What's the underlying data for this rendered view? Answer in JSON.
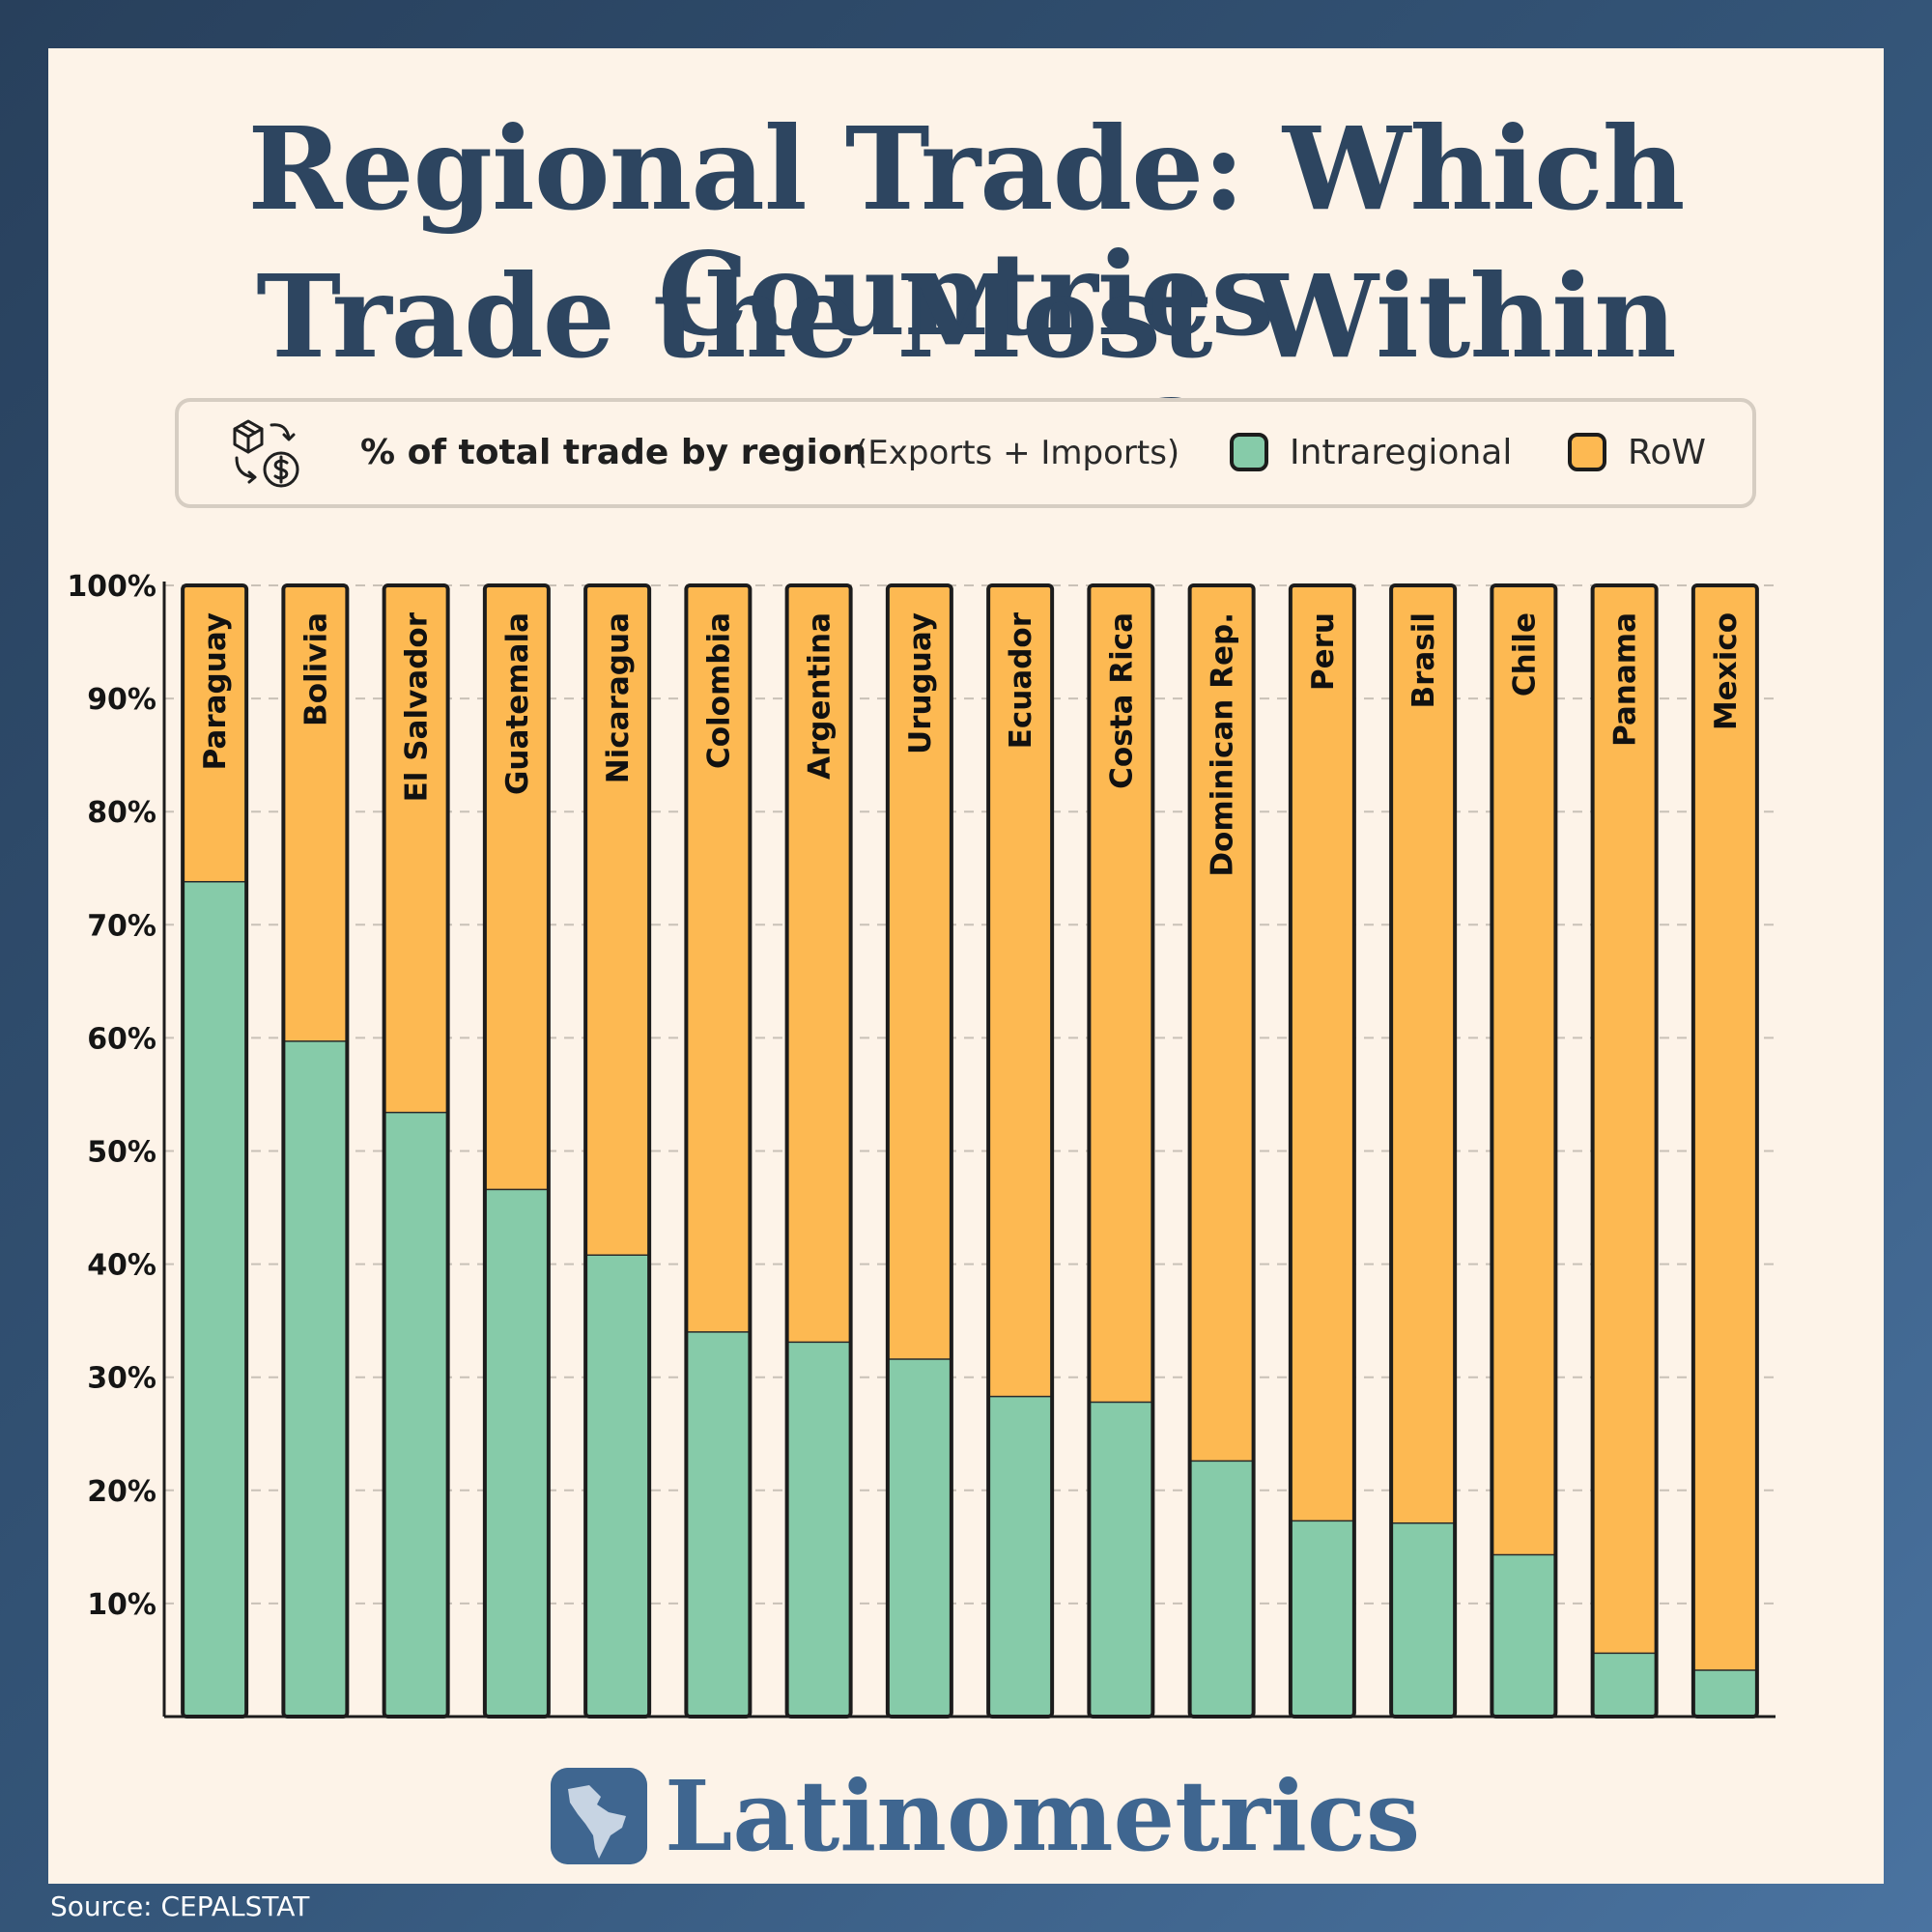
{
  "header": {
    "title_line1": "Regional Trade: Which Countries",
    "title_line2": "Trade the Most Within LatAm?"
  },
  "legend": {
    "measure": "% of total trade by region",
    "note": "(Exports + Imports)",
    "icon": "trade-exchange-icon",
    "items": [
      {
        "label": "Intraregional",
        "color": "#86cba9"
      },
      {
        "label": "RoW",
        "color": "#fdb952"
      }
    ]
  },
  "footer": {
    "brand": "Latinometrics",
    "logo_icon": "latam-map-logo-icon",
    "source": "Source: CEPALSTAT"
  },
  "chart_data": {
    "type": "bar",
    "stacked": true,
    "title": "Regional Trade: Which Countries Trade the Most Within LatAm?",
    "xlabel": "",
    "ylabel": "",
    "ylim": [
      0,
      100
    ],
    "yticks": [
      10,
      20,
      30,
      40,
      50,
      60,
      70,
      80,
      90,
      100
    ],
    "ytick_labels": [
      "10%",
      "20%",
      "30%",
      "40%",
      "50%",
      "60%",
      "70%",
      "80%",
      "90%",
      "100%"
    ],
    "grid": true,
    "legend_position": "top",
    "categories": [
      "Paraguay",
      "Bolivia",
      "El Salvador",
      "Guatemala",
      "Nicaragua",
      "Colombia",
      "Argentina",
      "Uruguay",
      "Ecuador",
      "Costa Rica",
      "Dominican Rep.",
      "Peru",
      "Brasil",
      "Chile",
      "Panama",
      "Mexico"
    ],
    "series": [
      {
        "name": "Intraregional",
        "color": "#86cba9",
        "values": [
          73.8,
          59.7,
          53.4,
          46.6,
          40.8,
          34.0,
          33.1,
          31.6,
          28.3,
          27.8,
          22.6,
          17.3,
          17.1,
          14.3,
          5.6,
          4.1
        ]
      },
      {
        "name": "RoW",
        "color": "#fdb952",
        "values": [
          26.2,
          40.3,
          46.6,
          53.4,
          59.2,
          66.0,
          66.9,
          68.4,
          71.7,
          72.2,
          77.4,
          82.7,
          82.9,
          85.7,
          94.4,
          95.9
        ]
      }
    ]
  }
}
